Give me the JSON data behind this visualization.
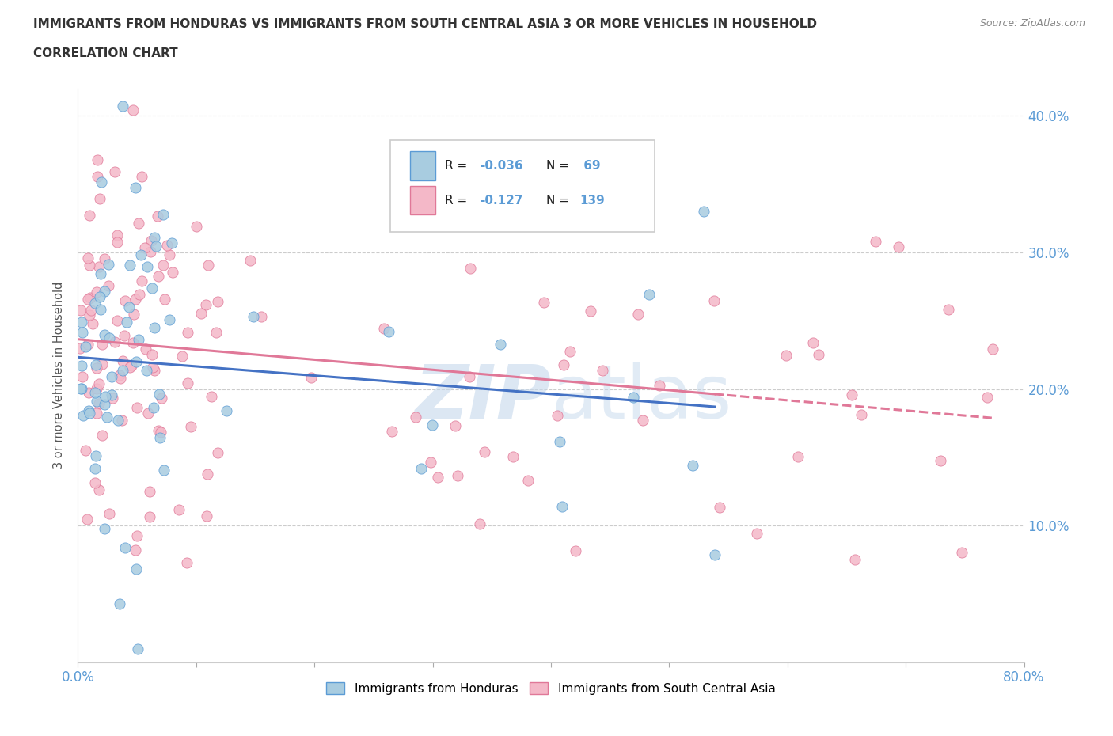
{
  "title_line1": "IMMIGRANTS FROM HONDURAS VS IMMIGRANTS FROM SOUTH CENTRAL ASIA 3 OR MORE VEHICLES IN HOUSEHOLD",
  "title_line2": "CORRELATION CHART",
  "source_text": "Source: ZipAtlas.com",
  "ylabel": "3 or more Vehicles in Household",
  "xlim": [
    0.0,
    0.8
  ],
  "ylim": [
    0.0,
    0.42
  ],
  "xtick_positions": [
    0.0,
    0.1,
    0.2,
    0.3,
    0.4,
    0.5,
    0.6,
    0.7,
    0.8
  ],
  "xticklabels": [
    "0.0%",
    "",
    "",
    "",
    "",
    "",
    "",
    "",
    "80.0%"
  ],
  "ytick_positions": [
    0.1,
    0.2,
    0.3,
    0.4
  ],
  "ytick_labels": [
    "10.0%",
    "20.0%",
    "30.0%",
    "40.0%"
  ],
  "honduras_dot_color": "#a8cce0",
  "honduras_edge_color": "#5b9bd5",
  "south_asia_dot_color": "#f4b8c8",
  "south_asia_edge_color": "#e07898",
  "honduras_line_color": "#4472c4",
  "south_asia_line_color": "#e07898",
  "R_honduras": -0.036,
  "N_honduras": 69,
  "R_south_asia": -0.127,
  "N_south_asia": 139,
  "watermark": "ZIPatlas",
  "legend_labels": [
    "Immigrants from Honduras",
    "Immigrants from South Central Asia"
  ],
  "tick_color": "#5b9bd5",
  "grid_color": "#cccccc",
  "title_color": "#333333",
  "source_color": "#888888"
}
